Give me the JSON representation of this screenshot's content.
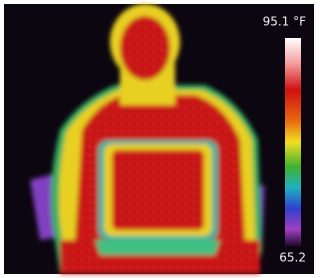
{
  "scale": {
    "max_label": "95.1 °F",
    "min_label": "65.2"
  }
}
